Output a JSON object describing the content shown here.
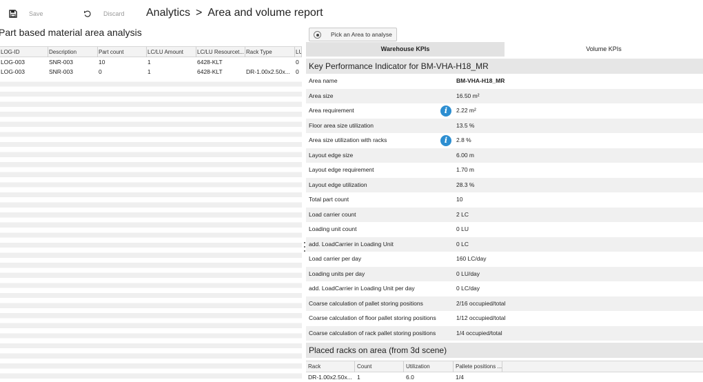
{
  "toolbar": {
    "save_label": "Save",
    "discard_label": "Discard",
    "breadcrumb": [
      "Analytics",
      "Area and volume report"
    ],
    "breadcrumb_sep": ">"
  },
  "left": {
    "title": "Part based material area analysis",
    "columns": [
      "LOG-ID",
      "Description",
      "Part count",
      "LC/LU Amount",
      "LC/LU Resourcet...",
      "Rack Type",
      "LU"
    ],
    "rows": [
      [
        "LOG-003",
        "SNR-003",
        "10",
        "1",
        "6428-KLT",
        "",
        "0"
      ],
      [
        "LOG-003",
        "SNR-003",
        "0",
        "1",
        "6428-KLT",
        "DR-1.00x2.50x...",
        "0"
      ]
    ]
  },
  "right": {
    "pick_button": "Pick an Area to analyse",
    "tabs": [
      "Warehouse KPIs",
      "Volume KPIs"
    ],
    "active_tab": "Warehouse KPIs",
    "kpi_title": "Key Performance Indicator for BM-VHA-H18_MR",
    "kpis": [
      {
        "label": "Area name",
        "value": "BM-VHA-H18_MR",
        "bold": true,
        "info": false
      },
      {
        "label": "Area size",
        "value": "16.50 m²",
        "info": false
      },
      {
        "label": "Area requirement",
        "value": "2.22 m²",
        "info": true
      },
      {
        "label": "Floor area size utilization",
        "value": "13.5 %",
        "info": false
      },
      {
        "label": "Area size utilization with racks",
        "value": "2.8 %",
        "info": true
      },
      {
        "label": "Layout edge size",
        "value": "6.00 m",
        "info": false
      },
      {
        "label": "Layout edge requirement",
        "value": "1.70 m",
        "info": false
      },
      {
        "label": "Layout edge utilization",
        "value": "28.3 %",
        "info": false
      },
      {
        "label": "Total part count",
        "value": "10",
        "info": false
      },
      {
        "label": "Load carrier count",
        "value": "2 LC",
        "info": false
      },
      {
        "label": "Loading unit count",
        "value": "0 LU",
        "info": false
      },
      {
        "label": "add. LoadCarrier in Loading Unit",
        "value": "0 LC",
        "info": false
      },
      {
        "label": "Load carrier per day",
        "value": "160 LC/day",
        "info": false
      },
      {
        "label": "Loading units per day",
        "value": "0 LU/day",
        "info": false
      },
      {
        "label": "add. LoadCarrier in Loading Unit per day",
        "value": "0 LC/day",
        "info": false
      },
      {
        "label": "Coarse calculation of pallet storing positions",
        "value": "2/16 occupied/total",
        "info": false
      },
      {
        "label": "Coarse calculation of floor pallet storing positions",
        "value": "1/12 occupied/total",
        "info": false
      },
      {
        "label": "Coarse calculation of rack pallet storing positions",
        "value": "1/4 occupied/total",
        "info": false
      }
    ],
    "racks_title": "Placed racks on area (from 3d scene)",
    "rack_columns": [
      "Rack",
      "Count",
      "Utilization",
      "Pallete positions ..."
    ],
    "rack_rows": [
      [
        "DR-1.00x2.50x...",
        "1",
        "6.0",
        "1/4"
      ]
    ],
    "info_glyph": "i"
  },
  "icons": {
    "save": "save-icon",
    "discard": "undo-icon",
    "pick": "radio-target-icon",
    "info": "info-icon"
  },
  "colors": {
    "info_blue": "#2c8ed1",
    "active_tab": "#e2e2e2",
    "section_header": "#e6e6e6"
  }
}
